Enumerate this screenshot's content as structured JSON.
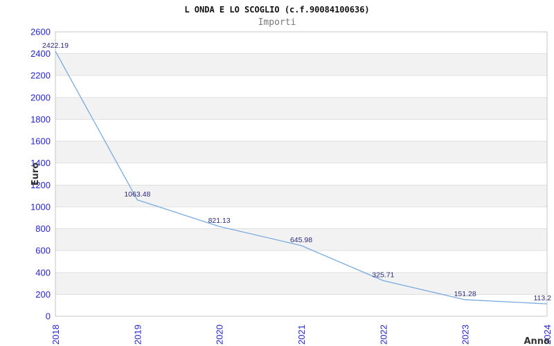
{
  "chart_data": {
    "type": "line",
    "title": "L ONDA E LO SCOGLIO (c.f.90084100636)",
    "subtitle": "Importi",
    "xlabel": "Anno",
    "ylabel": "Euro",
    "x": [
      "2018",
      "2019",
      "2020",
      "2021",
      "2022",
      "2023",
      "2024"
    ],
    "series": [
      {
        "name": "Importi",
        "values": [
          2422.19,
          1063.48,
          821.13,
          645.98,
          325.71,
          151.28,
          113.2
        ]
      }
    ],
    "point_labels": [
      "2422.19",
      "1063.48",
      "821.13",
      "645.98",
      "325.71",
      "151.28",
      "113.2"
    ],
    "ylim": [
      0,
      2600
    ],
    "ytick_step": 200,
    "yticks": [
      0,
      200,
      400,
      600,
      800,
      1000,
      1200,
      1400,
      1600,
      1800,
      2000,
      2200,
      2400,
      2600
    ],
    "grid": "horizontal-gridlines-with-alternating-bands",
    "legend": "none",
    "colors": {
      "line": "#79aadf",
      "tick_label": "#2424cc",
      "point_label": "#2a2a78",
      "band": "#f2f2f2",
      "gridline": "#dfdfdf",
      "plot_border": "#c6c6c6",
      "axis_title": "#333333",
      "title": "#111111",
      "subtitle": "#777777",
      "background": "#ffffff"
    }
  }
}
